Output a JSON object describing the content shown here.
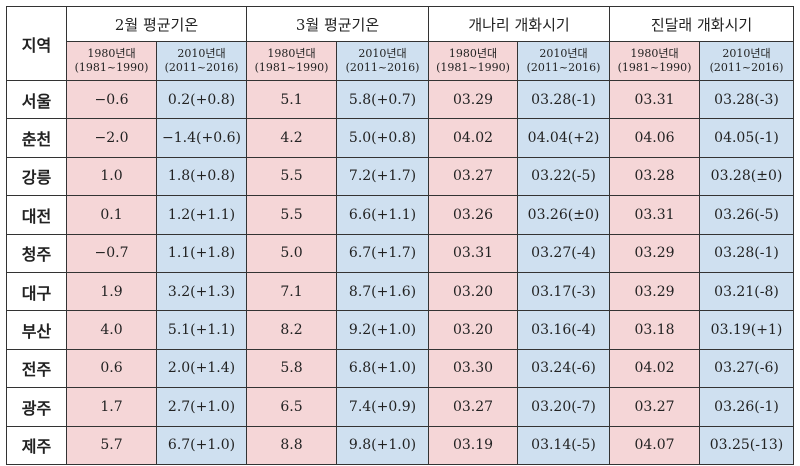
{
  "header": {
    "region": "지역",
    "groups": [
      "2월 평균기온",
      "3월 평균기온",
      "개나리 개화시기",
      "진달래 개화시기"
    ],
    "period_a": {
      "label": "1980년대",
      "range": "(1981~1990)"
    },
    "period_b": {
      "label": "2010년대",
      "range": "(2011~2016)"
    }
  },
  "rows": [
    {
      "region": "서울",
      "cells": [
        "−0.6",
        "0.2(+0.8)",
        "5.1",
        "5.8(+0.7)",
        "03.29",
        "03.28(-1)",
        "03.31",
        "03.28(-3)"
      ]
    },
    {
      "region": "춘천",
      "cells": [
        "−2.0",
        "−1.4(+0.6)",
        "4.2",
        "5.0(+0.8)",
        "04.02",
        "04.04(+2)",
        "04.06",
        "04.05(-1)"
      ]
    },
    {
      "region": "강릉",
      "cells": [
        "1.0",
        "1.8(+0.8)",
        "5.5",
        "7.2(+1.7)",
        "03.27",
        "03.22(-5)",
        "03.28",
        "03.28(±0)"
      ]
    },
    {
      "region": "대전",
      "cells": [
        "0.1",
        "1.2(+1.1)",
        "5.5",
        "6.6(+1.1)",
        "03.26",
        "03.26(±0)",
        "03.31",
        "03.26(-5)"
      ]
    },
    {
      "region": "청주",
      "cells": [
        "−0.7",
        "1.1(+1.8)",
        "5.0",
        "6.7(+1.7)",
        "03.31",
        "03.27(-4)",
        "03.29",
        "03.28(-1)"
      ]
    },
    {
      "region": "대구",
      "cells": [
        "1.9",
        "3.2(+1.3)",
        "7.1",
        "8.7(+1.6)",
        "03.20",
        "03.17(-3)",
        "03.29",
        "03.21(-8)"
      ]
    },
    {
      "region": "부산",
      "cells": [
        "4.0",
        "5.1(+1.1)",
        "8.2",
        "9.2(+1.0)",
        "03.20",
        "03.16(-4)",
        "03.18",
        "03.19(+1)"
      ]
    },
    {
      "region": "전주",
      "cells": [
        "0.6",
        "2.0(+1.4)",
        "5.8",
        "6.8(+1.0)",
        "03.30",
        "03.24(-6)",
        "04.02",
        "03.27(-6)"
      ]
    },
    {
      "region": "광주",
      "cells": [
        "1.7",
        "2.7(+1.0)",
        "6.5",
        "7.4(+0.9)",
        "03.27",
        "03.20(-7)",
        "03.27",
        "03.26(-1)"
      ]
    },
    {
      "region": "제주",
      "cells": [
        "5.7",
        "6.7(+1.0)",
        "8.8",
        "9.8(+1.0)",
        "03.19",
        "03.14(-5)",
        "04.07",
        "03.25(-13)"
      ]
    }
  ]
}
